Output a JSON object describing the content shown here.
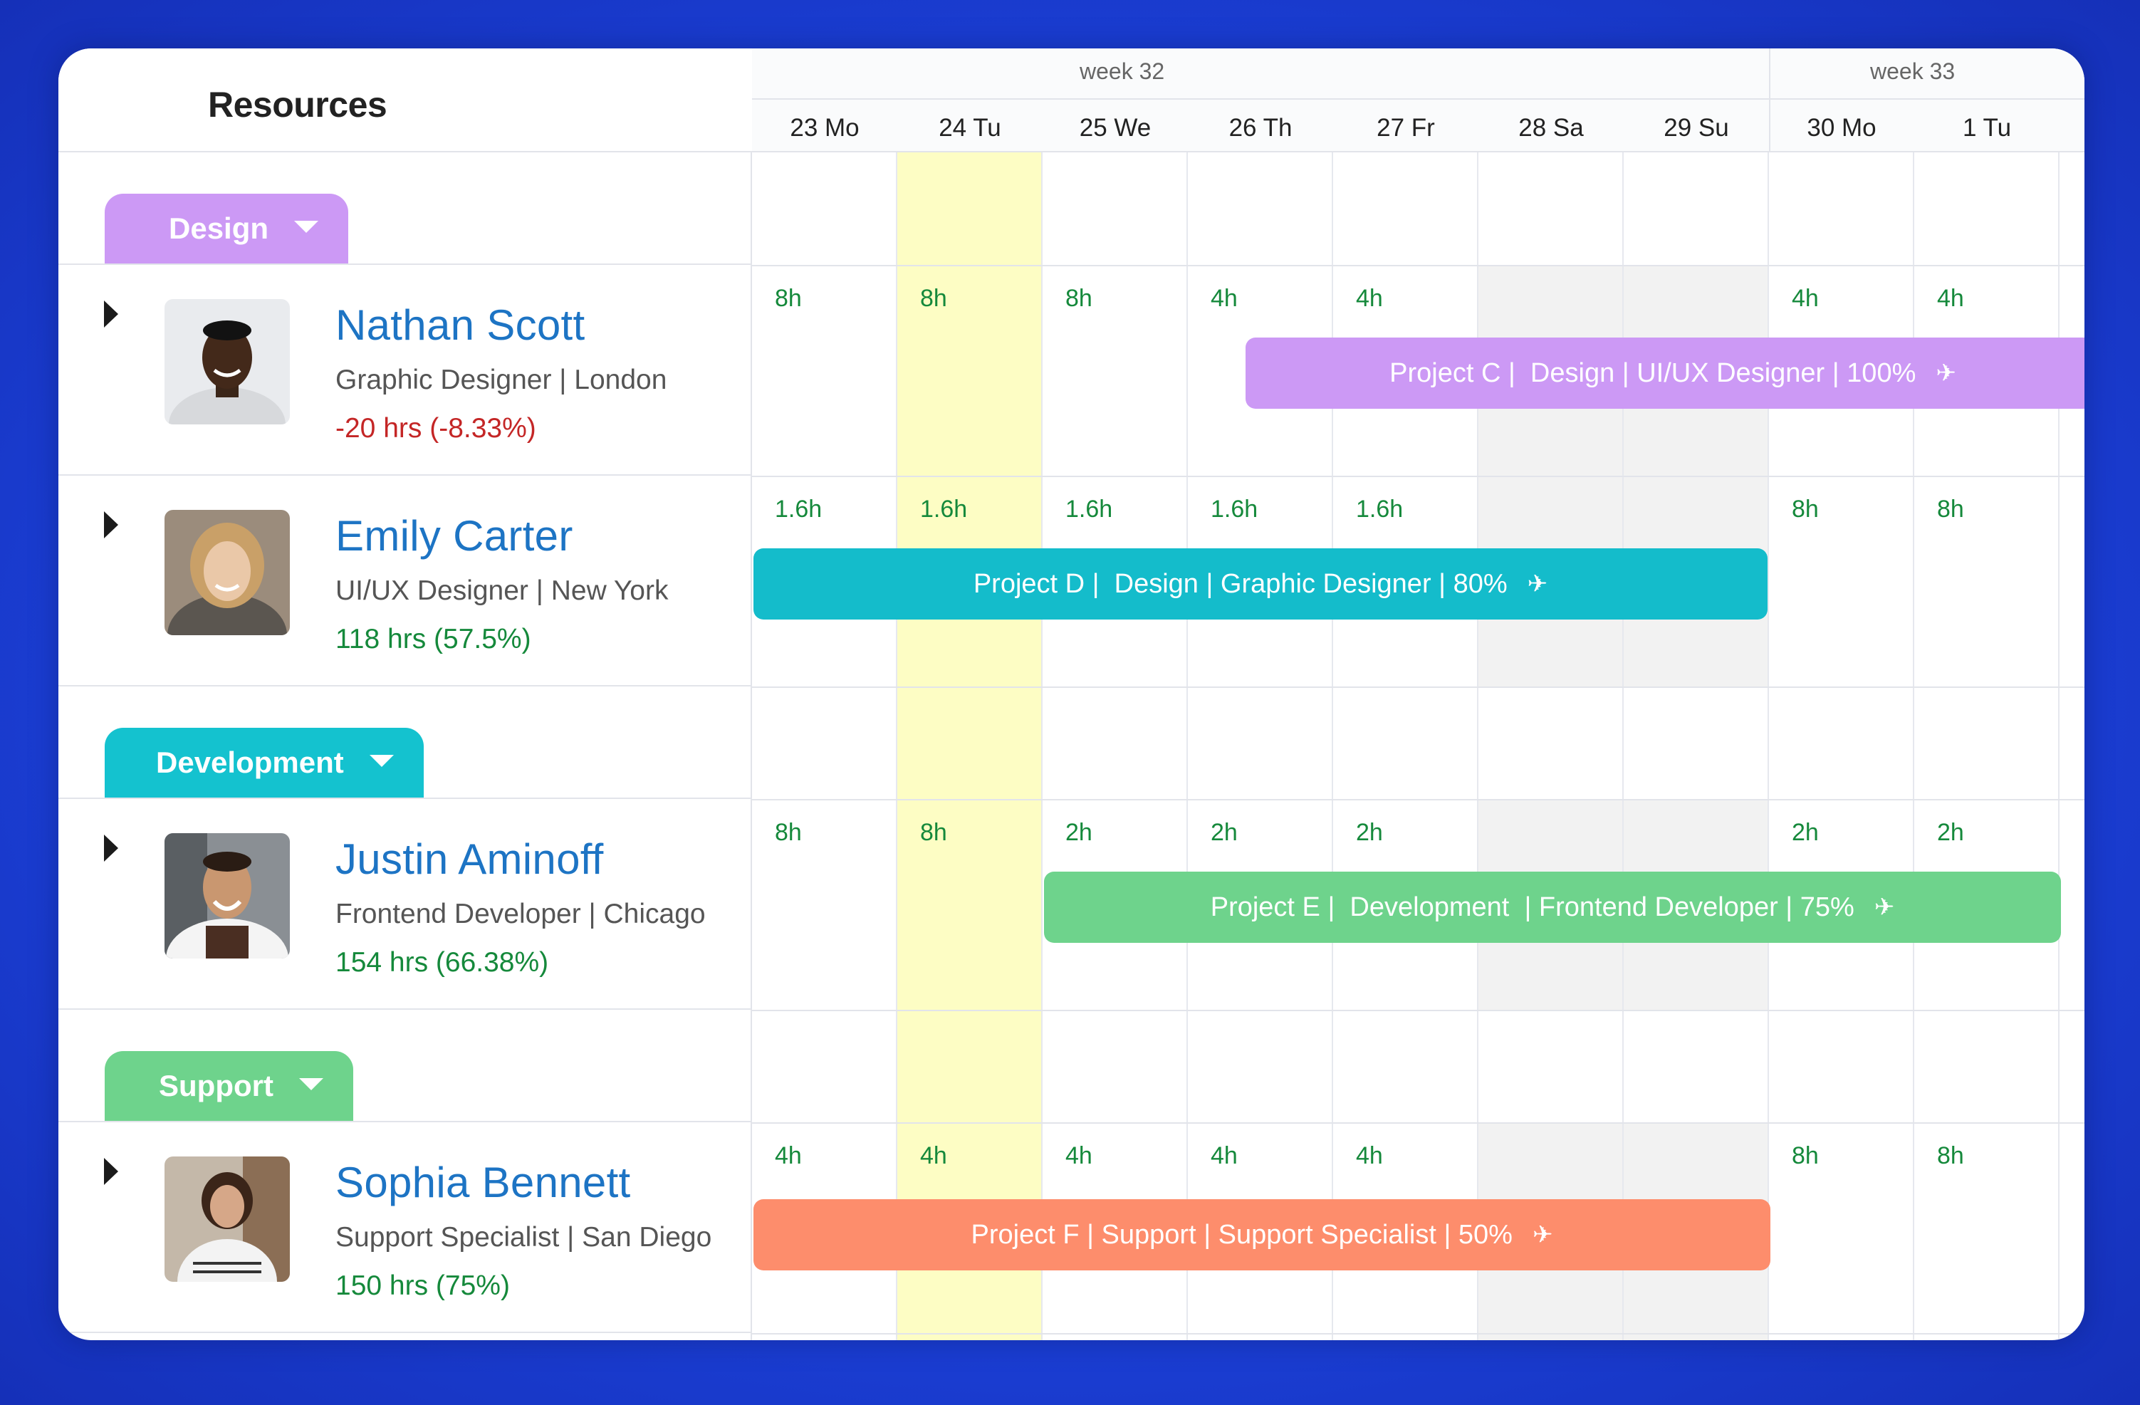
{
  "header": {
    "title": "Resources"
  },
  "weeks": [
    {
      "label": "week 32"
    },
    {
      "label": "week 33"
    }
  ],
  "days": [
    {
      "label": "23 Mo",
      "type": "work"
    },
    {
      "label": "24 Tu",
      "type": "today"
    },
    {
      "label": "25 We",
      "type": "work"
    },
    {
      "label": "26 Th",
      "type": "work"
    },
    {
      "label": "27 Fr",
      "type": "work"
    },
    {
      "label": "28 Sa",
      "type": "weekend"
    },
    {
      "label": "29 Su",
      "type": "weekend"
    },
    {
      "label": "30 Mo",
      "type": "work"
    },
    {
      "label": "1 Tu",
      "type": "work"
    }
  ],
  "colors": {
    "design": "#cc99f5",
    "development": "#14c2cf",
    "support": "#6ed38c",
    "project_c": "#cc99f5",
    "project_d": "#14bccb",
    "project_e": "#6ed38c",
    "project_f": "#fd8d6c"
  },
  "groups": [
    {
      "name": "Design",
      "people": [
        {
          "name": "Nathan Scott",
          "role": "Graphic Designer | London",
          "hours_summary": "-20 hrs (-8.33%)",
          "hours_positive": false,
          "daily_hours": [
            "8h",
            "8h",
            "8h",
            "4h",
            "4h",
            "",
            "",
            "4h",
            "4h"
          ],
          "assignment": {
            "label": "Project C |  Design | UI/UX Designer | 100%",
            "icon": "plane-icon"
          }
        },
        {
          "name": "Emily Carter",
          "role": "UI/UX Designer | New York",
          "hours_summary": "118 hrs (57.5%)",
          "hours_positive": true,
          "daily_hours": [
            "1.6h",
            "1.6h",
            "1.6h",
            "1.6h",
            "1.6h",
            "",
            "",
            "8h",
            "8h"
          ],
          "assignment": {
            "label": "Project D |  Design | Graphic Designer | 80%",
            "icon": "plane-icon"
          }
        }
      ]
    },
    {
      "name": "Development",
      "people": [
        {
          "name": "Justin Aminoff",
          "role": "Frontend Developer | Chicago",
          "hours_summary": "154 hrs (66.38%)",
          "hours_positive": true,
          "daily_hours": [
            "8h",
            "8h",
            "2h",
            "2h",
            "2h",
            "",
            "",
            "2h",
            "2h"
          ],
          "assignment": {
            "label": "Project E |  Development  | Frontend Developer | 75%",
            "icon": "plane-icon"
          }
        }
      ]
    },
    {
      "name": "Support",
      "people": [
        {
          "name": "Sophia Bennett",
          "role": "Support Specialist | San Diego",
          "hours_summary": "150 hrs (75%)",
          "hours_positive": true,
          "daily_hours": [
            "4h",
            "4h",
            "4h",
            "4h",
            "4h",
            "",
            "",
            "8h",
            "8h"
          ],
          "assignment": {
            "label": "Project F | Support | Support Specialist | 50%",
            "icon": "plane-icon"
          }
        }
      ]
    }
  ]
}
